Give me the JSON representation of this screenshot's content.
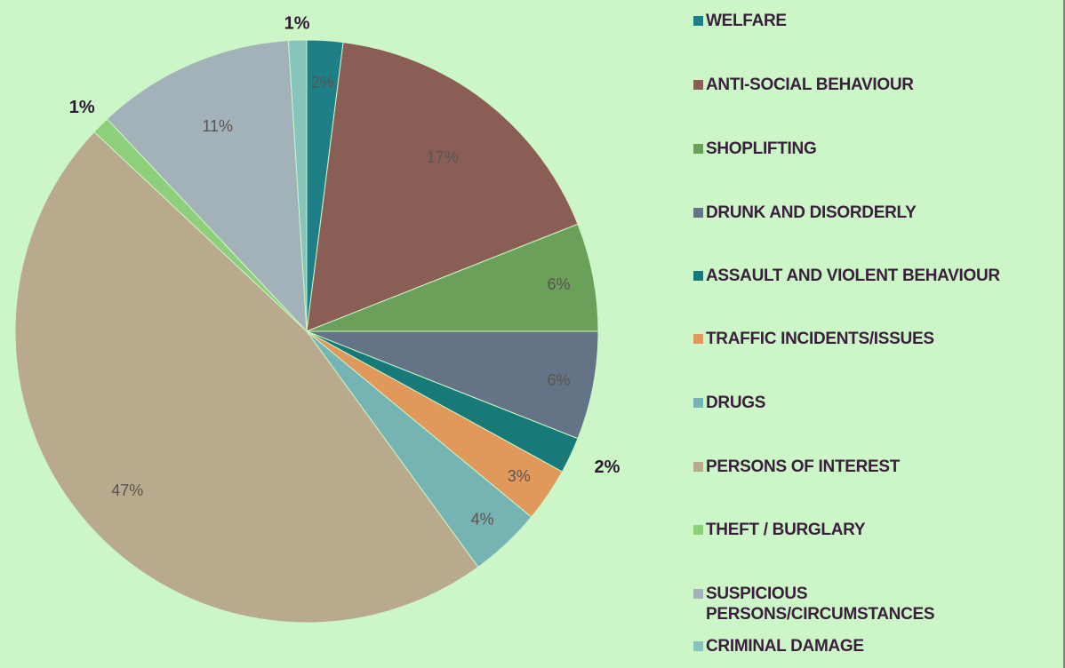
{
  "chart_data": {
    "type": "pie",
    "title": "",
    "start_angle_deg": 0,
    "direction": "clockwise",
    "slices": [
      {
        "label": "WELFARE",
        "value": 2,
        "data_label": "2%",
        "color": "#1e7f86"
      },
      {
        "label": "ANTI-SOCIAL BEHAVIOUR",
        "value": 17,
        "data_label": "17%",
        "color": "#8a5e54"
      },
      {
        "label": "SHOPLIFTING",
        "value": 6,
        "data_label": "6%",
        "color": "#6aa05a"
      },
      {
        "label": "DRUNK AND DISORDERLY",
        "value": 6,
        "data_label": "6%",
        "color": "#647486"
      },
      {
        "label": "ASSAULT AND VIOLENT BEHAVIOUR",
        "value": 2,
        "data_label": "2%",
        "color": "#177a78"
      },
      {
        "label": "TRAFFIC INCIDENTS/ISSUES",
        "value": 3,
        "data_label": "3%",
        "color": "#e0995a"
      },
      {
        "label": "DRUGS",
        "value": 4,
        "data_label": "4%",
        "color": "#76b3b3"
      },
      {
        "label": "PERSONS OF INTEREST",
        "value": 47,
        "data_label": "47%",
        "color": "#b9a98d"
      },
      {
        "label": "THEFT / BURGLARY",
        "value": 1,
        "data_label": "1%",
        "color": "#8dcf7a"
      },
      {
        "label": "SUSPICIOUS PERSONS/CIRCUMSTANCES",
        "value": 11,
        "data_label": "11%",
        "color": "#a3b1b9"
      },
      {
        "label": "CRIMINAL DAMAGE",
        "value": 1,
        "data_label": "1%",
        "color": "#86c5bc"
      }
    ],
    "legend_position": "right"
  }
}
